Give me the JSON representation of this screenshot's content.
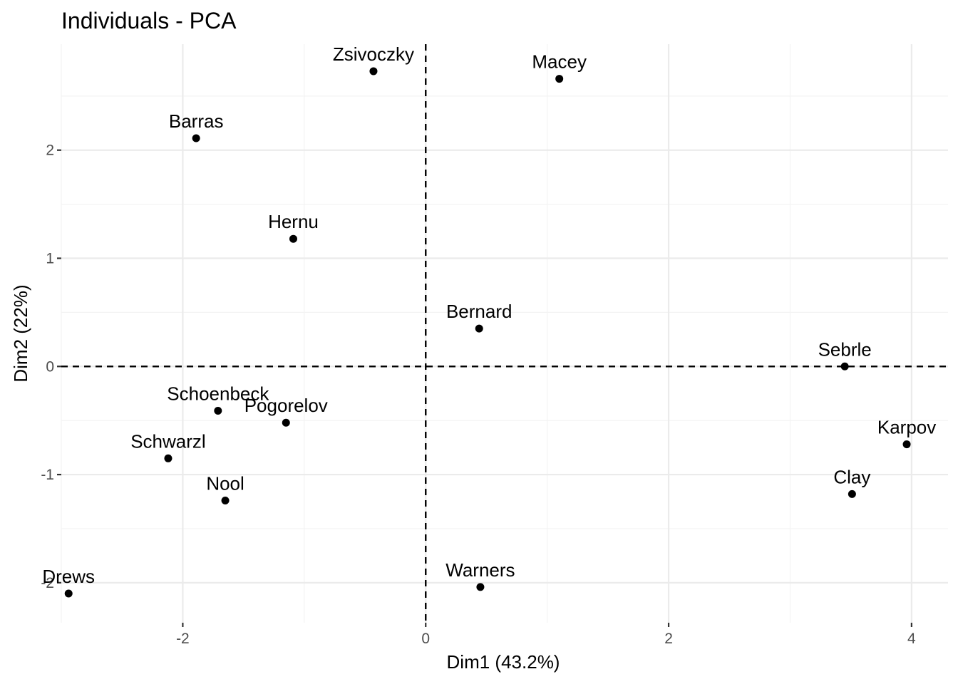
{
  "chart_data": {
    "type": "scatter",
    "title": "Individuals - PCA",
    "xlabel": "Dim1 (43.2%)",
    "ylabel": "Dim2 (22%)",
    "xlim": [
      -3.0,
      4.3
    ],
    "ylim": [
      -2.37,
      2.98
    ],
    "x_ticks": [
      -2,
      0,
      2,
      4
    ],
    "y_ticks": [
      -2,
      -1,
      0,
      1,
      2
    ],
    "x_tick_labels": [
      "-2",
      "0",
      "2",
      "4"
    ],
    "y_tick_labels": [
      "-2",
      "-1",
      "0",
      "1",
      "2"
    ],
    "reference_lines": {
      "x": 0,
      "y": 0
    },
    "grid": true,
    "points": [
      {
        "name": "Sebrle",
        "x": 3.45,
        "y": 0.0
      },
      {
        "name": "Clay",
        "x": 3.51,
        "y": -1.18
      },
      {
        "name": "Karpov",
        "x": 3.96,
        "y": -0.72
      },
      {
        "name": "Macey",
        "x": 1.1,
        "y": 2.66
      },
      {
        "name": "Warners",
        "x": 0.45,
        "y": -2.04
      },
      {
        "name": "Zsivoczky",
        "x": -0.43,
        "y": 2.73
      },
      {
        "name": "Hernu",
        "x": -1.09,
        "y": 1.18
      },
      {
        "name": "Nool",
        "x": -1.65,
        "y": -1.24
      },
      {
        "name": "Bernard",
        "x": 0.44,
        "y": 0.35
      },
      {
        "name": "Schwarzl",
        "x": -2.12,
        "y": -0.85
      },
      {
        "name": "Pogorelov",
        "x": -1.15,
        "y": -0.52
      },
      {
        "name": "Schoenbeck",
        "x": -1.71,
        "y": -0.41
      },
      {
        "name": "Barras",
        "x": -1.89,
        "y": 2.11
      },
      {
        "name": "Drews",
        "x": -2.94,
        "y": -2.1
      }
    ]
  }
}
